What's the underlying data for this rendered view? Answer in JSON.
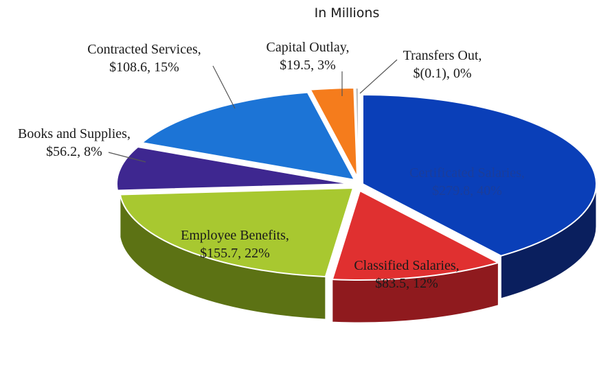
{
  "chart_data": {
    "type": "pie",
    "title": "In Millions",
    "categories": [
      "Certificated Salaries",
      "Classified Salaries",
      "Employee Benefits",
      "Books and Supplies",
      "Contracted Services",
      "Capital Outlay",
      "Transfers Out"
    ],
    "values": [
      279.8,
      83.5,
      155.7,
      56.2,
      108.6,
      19.5,
      -0.1
    ],
    "slices": [
      {
        "label_line1": "Certificated Salaries,",
        "label_line2": "$279.8, 40%",
        "value": 279.8,
        "percent": 40,
        "color": "#0a3fb8",
        "side_color": "#0a1f5e",
        "label_color": "#1b3d9a"
      },
      {
        "label_line1": "Classified Salaries,",
        "label_line2": "$83.5, 12%",
        "value": 83.5,
        "percent": 12,
        "color": "#e03030",
        "side_color": "#8f1a1e",
        "label_color": "#1a1a1a"
      },
      {
        "label_line1": "Employee Benefits,",
        "label_line2": "$155.7, 22%",
        "value": 155.7,
        "percent": 22,
        "color": "#a8c830",
        "side_color": "#5c7214",
        "label_color": "#1a1a1a"
      },
      {
        "label_line1": "Books and Supplies,",
        "label_line2": "$56.2, 8%",
        "value": 56.2,
        "percent": 8,
        "color": "#3e2790",
        "side_color": "#231552",
        "label_color": "#1a1a1a"
      },
      {
        "label_line1": "Contracted Services,",
        "label_line2": "$108.6, 15%",
        "value": 108.6,
        "percent": 15,
        "color": "#1c74d6",
        "side_color": "#0f4380",
        "label_color": "#1a1a1a"
      },
      {
        "label_line1": "Capital Outlay,",
        "label_line2": "$19.5, 3%",
        "value": 19.5,
        "percent": 3,
        "color": "#f57c1c",
        "side_color": "#9a4a0c",
        "label_color": "#1a1a1a"
      },
      {
        "label_line1": "Transfers Out,",
        "label_line2": "$(0.1), 0%",
        "value": -0.1,
        "percent": 0,
        "color": "#c0c0c0",
        "side_color": "#808080",
        "label_color": "#1a1a1a"
      }
    ],
    "legend": "none",
    "style": "3d-exploded-pie"
  }
}
